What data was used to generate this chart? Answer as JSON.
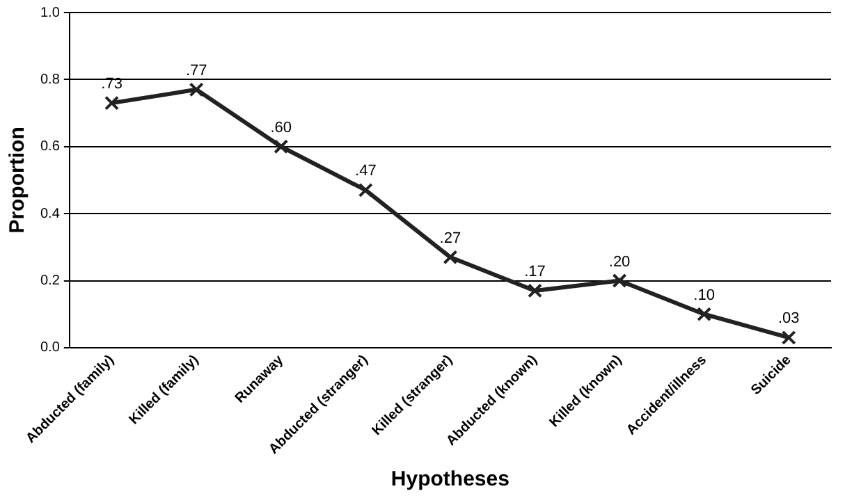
{
  "chart_data": {
    "type": "line",
    "xlabel": "Hypotheses",
    "ylabel": "Proportion",
    "categories": [
      "Abducted (family)",
      "Killed (family)",
      "Runaway",
      "Abducted (stranger)",
      "Killed (stranger)",
      "Abducted (known)",
      "Killed (known)",
      "Accident/illness",
      "Suicide"
    ],
    "values": [
      0.73,
      0.77,
      0.6,
      0.47,
      0.27,
      0.17,
      0.2,
      0.1,
      0.03
    ],
    "value_labels": [
      ".73",
      ".77",
      ".60",
      ".47",
      ".27",
      ".17",
      ".20",
      ".10",
      ".03"
    ],
    "color": "#222222",
    "marker": "cross",
    "line_style": "solid",
    "grid": "y",
    "ylim": [
      0,
      1
    ],
    "yticks": [
      {
        "value": 0,
        "label": "0.0"
      },
      {
        "value": 0.2,
        "label": "0.2"
      },
      {
        "value": 0.4,
        "label": "0.4"
      },
      {
        "value": 0.6,
        "label": "0.6"
      },
      {
        "value": 0.8,
        "label": "0.8"
      },
      {
        "value": 1,
        "label": "1.0"
      }
    ]
  }
}
